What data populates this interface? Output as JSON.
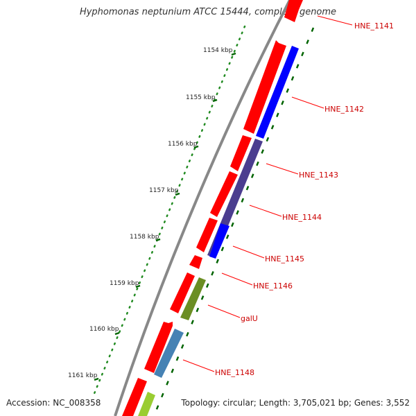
{
  "title": "Hyphomonas neptunium ATCC 15444, complete genome",
  "accession": "Accession: NC_008358",
  "topology": "Topology: circular; Length: 3,705,021 bp; Genes: 3,552",
  "kbp_ticks": [
    "1154 kbp",
    "1155 kbp",
    "1156 kbp",
    "1157 kbp",
    "1158 kbp",
    "1159 kbp",
    "1160 kbp",
    "1161 kbp"
  ],
  "genes": [
    {
      "name": "HNE_1141",
      "color": "#ff0000"
    },
    {
      "name": "HNE_1142",
      "color": "#0000ff"
    },
    {
      "name": "HNE_1143",
      "color": "#4b3d8f"
    },
    {
      "name": "HNE_1144",
      "color": "#4b3d8f"
    },
    {
      "name": "HNE_1145",
      "color": "#0000ff"
    },
    {
      "name": "HNE_1146",
      "color": "#ff0000"
    },
    {
      "name": "galU",
      "color": "#6b8e23"
    },
    {
      "name": "HNE_1148",
      "color": "#4682b4"
    }
  ],
  "colors": {
    "backbone": "#888888",
    "forward_cds": "#ff0000",
    "tick_marks": "#006400",
    "label_lines": "#ff0000"
  }
}
